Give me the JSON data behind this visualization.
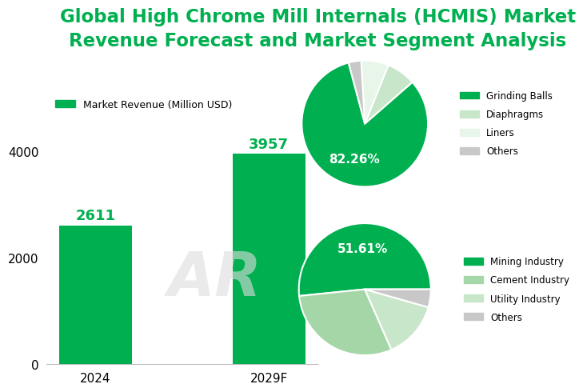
{
  "title_line1": "Global High Chrome Mill Internals (HCMIS) Market",
  "title_line2": "Revenue Forecast and Market Segment Analysis",
  "title_color": "#00b050",
  "title_fontsize": 16.5,
  "bar_categories": [
    "2024",
    "2029F"
  ],
  "bar_values": [
    2611,
    3957
  ],
  "bar_color": "#00b050",
  "bar_label_color": "#00b050",
  "bar_label_fontsize": 13,
  "ylim": [
    0,
    4600
  ],
  "yticks": [
    0,
    2000,
    4000
  ],
  "legend_label": "Market Revenue (Million USD)",
  "legend_color": "#00b050",
  "pie1_values": [
    82.26,
    7.5,
    7.0,
    3.24
  ],
  "pie1_labels": [
    "Grinding Balls",
    "Diaphragms",
    "Liners",
    "Others"
  ],
  "pie1_colors": [
    "#00b050",
    "#c8e6c9",
    "#e8f5e9",
    "#c8c8c8"
  ],
  "pie1_pct": "82.26%",
  "pie1_startangle": 105,
  "pie2_values": [
    51.61,
    30.0,
    14.0,
    4.39
  ],
  "pie2_labels": [
    "Mining Industry",
    "Cement Industry",
    "Utility Industry",
    "Others"
  ],
  "pie2_colors": [
    "#00b050",
    "#a5d6a7",
    "#c8e6c9",
    "#c8c8c8"
  ],
  "pie2_pct": "51.61%",
  "pie2_startangle": 0,
  "background_color": "#ffffff",
  "watermark_text": "AR"
}
